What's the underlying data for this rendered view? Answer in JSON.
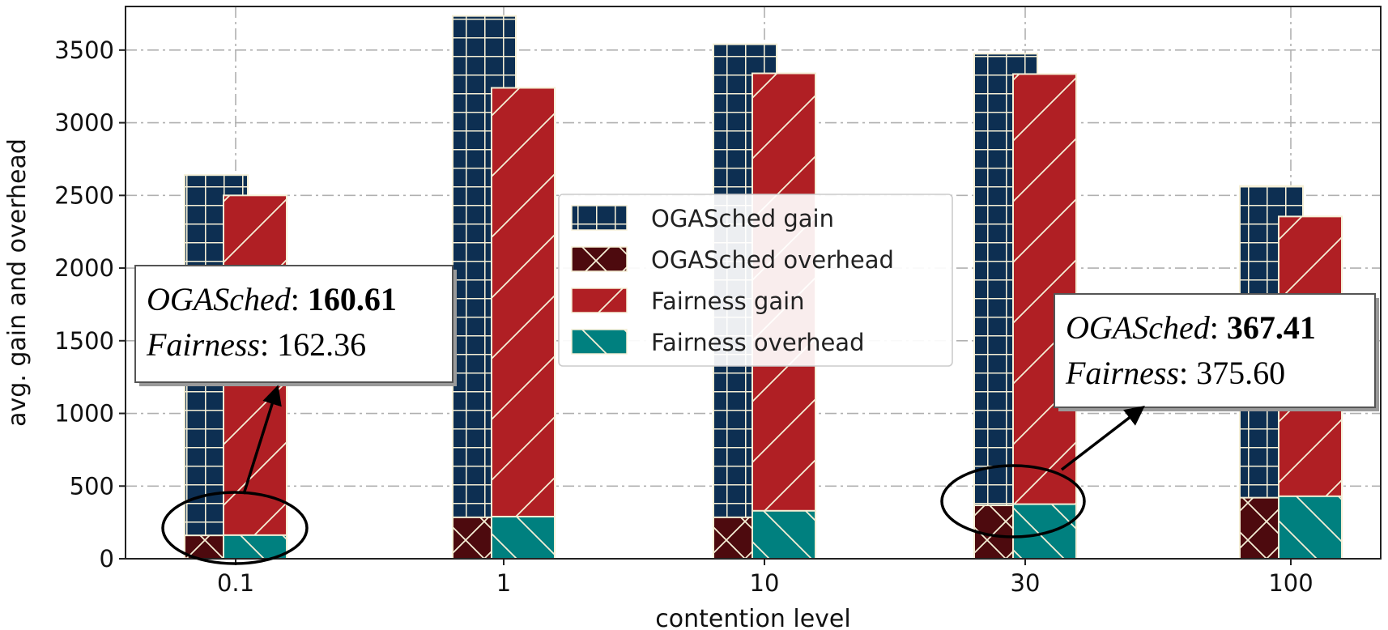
{
  "chart_data": {
    "type": "bar",
    "stacked_groups": true,
    "title": "",
    "xlabel": "contention level",
    "ylabel": "avg. gain and overhead",
    "categories": [
      "0.1",
      "1",
      "10",
      "30",
      "100"
    ],
    "ylim": [
      0,
      3800
    ],
    "yticks": [
      0,
      500,
      1000,
      1500,
      2000,
      2500,
      3000,
      3500
    ],
    "yticklabels": [
      "0",
      "500",
      "1000",
      "1500",
      "2000",
      "2500",
      "3000",
      "3500"
    ],
    "grid": true,
    "legend_position": "center",
    "series": [
      {
        "name": "OGASched gain",
        "bar": "OGASched",
        "role": "gain",
        "values": [
          2640,
          3735,
          3540,
          3475,
          2565
        ]
      },
      {
        "name": "OGASched overhead",
        "bar": "OGASched",
        "role": "overhead",
        "values": [
          160.61,
          285,
          285,
          367.41,
          420
        ]
      },
      {
        "name": "Fairness gain",
        "bar": "Fairness",
        "role": "gain",
        "values": [
          2500,
          3240,
          3340,
          3335,
          2355
        ]
      },
      {
        "name": "Fairness overhead",
        "bar": "Fairness",
        "role": "overhead",
        "values": [
          162.36,
          290,
          330,
          375.6,
          430
        ]
      }
    ],
    "colors": {
      "ogasched_gain": "#0d2f52",
      "ogasched_overhead": "#4d0a0e",
      "fairness_gain": "#b01f24",
      "fairness_overhead": "#00807f",
      "hatch": "#f5efd6"
    },
    "annotations": [
      {
        "category": "0.1",
        "name_a": "OGASched",
        "value_a": "160.61",
        "name_b": "Fairness",
        "value_b": "162.36"
      },
      {
        "category": "30",
        "name_a": "OGASched",
        "value_a": "367.41",
        "name_b": "Fairness",
        "value_b": "375.60"
      }
    ]
  }
}
